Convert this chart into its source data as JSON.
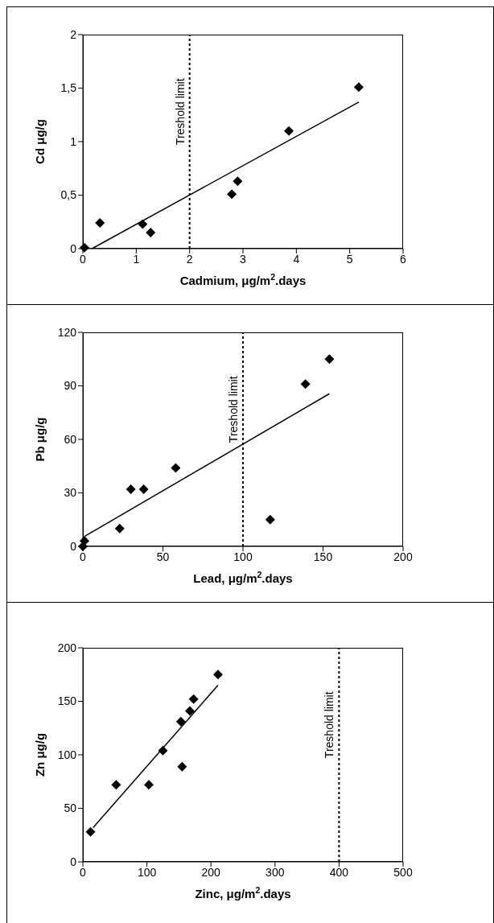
{
  "chart_data": [
    {
      "type": "scatter",
      "xlabel": "Cadmium, μg/m$^{2}$.days",
      "ylabel": "Cd μg/g",
      "marker": "diamond",
      "xlim": [
        0,
        6
      ],
      "xticks": [
        0,
        1,
        2,
        3,
        4,
        5,
        6
      ],
      "ylim": [
        0,
        2
      ],
      "yticks": [
        0,
        {
          "value": 0.5,
          "label": "0,5"
        },
        1,
        {
          "value": 1.5,
          "label": "1,5"
        },
        2
      ],
      "series": [
        {
          "color": "#000000",
          "x": [
            0.03,
            0.32,
            1.12,
            1.27,
            2.79,
            2.9,
            3.86,
            5.17
          ],
          "values": [
            0.01,
            0.24,
            0.23,
            0.15,
            0.51,
            0.63,
            1.1,
            1.51
          ]
        },
        {
          "type": "line",
          "color": "#000000",
          "marker": "none",
          "x": [
            0.17,
            5.17
          ],
          "values": [
            0,
            1.37
          ]
        }
      ],
      "ref_lines": [
        {
          "axis": "x",
          "value": 2,
          "label": "Treshold limit",
          "line_style": "dotted",
          "color": "#000000"
        }
      ]
    },
    {
      "type": "scatter",
      "xlabel": "Lead, μg/m$^{2}$.days",
      "ylabel": "Pb μg/g",
      "marker": "diamond",
      "xlim": [
        0,
        200
      ],
      "xticks": [
        0,
        50,
        100,
        150,
        200
      ],
      "ylim": [
        0,
        120
      ],
      "yticks": [
        0,
        30,
        60,
        90,
        120
      ],
      "series": [
        {
          "color": "#000000",
          "x": [
            1,
            23,
            30,
            38,
            58,
            117,
            139,
            154,
            0
          ],
          "values": [
            3,
            10,
            32,
            32,
            44,
            15,
            91,
            105,
            0
          ]
        },
        {
          "type": "line",
          "color": "#000000",
          "marker": "none",
          "x": [
            1,
            154
          ],
          "values": [
            5.6,
            85.6
          ]
        }
      ],
      "ref_lines": [
        {
          "axis": "x",
          "value": 100,
          "label": "Treshold limit",
          "line_style": "dotted",
          "color": "#000000"
        }
      ]
    },
    {
      "type": "scatter",
      "xlabel": "Zinc, μg/m$^{2}$.days",
      "ylabel": "Zn μg/g",
      "marker": "diamond",
      "xlim": [
        0,
        500
      ],
      "xticks": [
        0,
        100,
        200,
        300,
        400,
        500
      ],
      "ylim": [
        0,
        200
      ],
      "yticks": [
        0,
        50,
        100,
        150,
        200
      ],
      "series": [
        {
          "color": "#000000",
          "x": [
            12,
            52,
            103,
            125,
            153,
            155,
            167,
            173,
            211
          ],
          "values": [
            28,
            72,
            72,
            104,
            131,
            89,
            141,
            152,
            175
          ]
        },
        {
          "type": "line",
          "color": "#000000",
          "marker": "none",
          "x": [
            16,
            211
          ],
          "values": [
            32,
            165
          ]
        }
      ],
      "ref_lines": [
        {
          "axis": "x",
          "value": 400,
          "label": "Treshold limit",
          "line_style": "dotted",
          "color": "#000000"
        }
      ]
    }
  ]
}
